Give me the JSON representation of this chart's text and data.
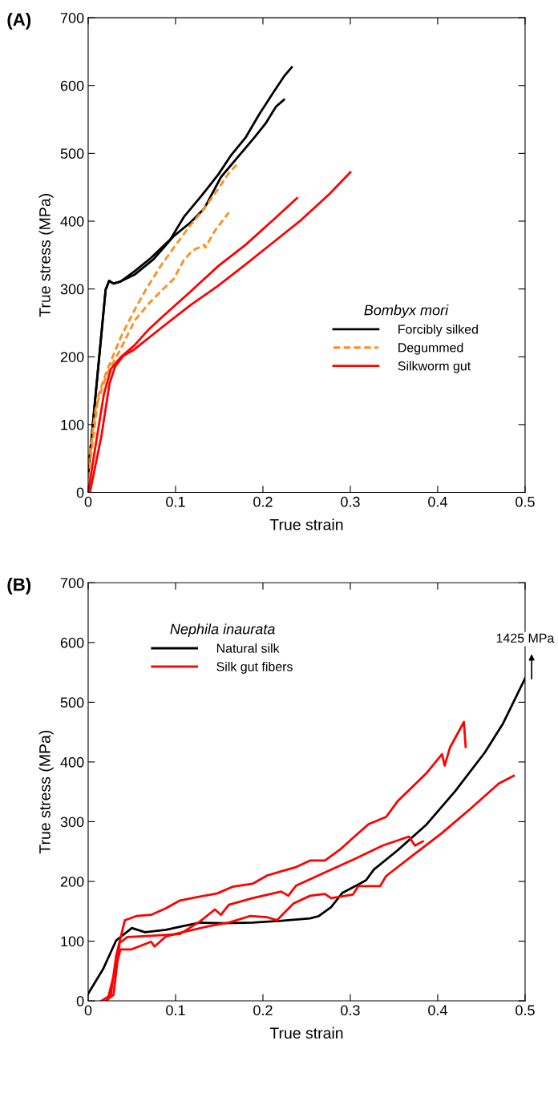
{
  "chart_data": [
    {
      "type": "line",
      "title": "(A)",
      "xlabel": "True strain",
      "ylabel": "True stress (MPa)",
      "legend_title": "Bombyx mori",
      "legend": "center right",
      "xlim": [
        0,
        0.5
      ],
      "ylim": [
        0,
        700
      ],
      "xticks": [
        0,
        0.1,
        0.2,
        0.3,
        0.4,
        0.5
      ],
      "yticks": [
        0,
        100,
        200,
        300,
        400,
        500,
        600,
        700
      ],
      "series": [
        {
          "name": "Forcibly silked",
          "color": "#000000",
          "x": [
            0,
            0.0086,
            0.02,
            0.024,
            0.029,
            0.037,
            0.053,
            0.072,
            0.094,
            0.11,
            0.13,
            0.149,
            0.164,
            0.18,
            0.196,
            0.212,
            0.225,
            0.233
          ],
          "values": [
            28,
            145,
            299,
            312,
            308,
            311,
            326,
            346,
            373,
            407,
            438,
            469,
            498,
            523,
            558,
            590,
            615,
            627
          ]
        },
        {
          "color": "#000000",
          "x": [
            0,
            0.0086,
            0.02,
            0.024,
            0.029,
            0.037,
            0.053,
            0.075,
            0.098,
            0.117,
            0.133,
            0.152,
            0.171,
            0.19,
            0.203,
            0.215,
            0.224
          ],
          "values": [
            28,
            145,
            299,
            312,
            308,
            311,
            321,
            344,
            378,
            398,
            419,
            465,
            494,
            523,
            544,
            569,
            579
          ]
        },
        {
          "name": "Degummed",
          "color": "#ff8c1a",
          "line_style": "dashed",
          "x": [
            0,
            0.012,
            0.021,
            0.037,
            0.053,
            0.066,
            0.082,
            0.098,
            0.117,
            0.133,
            0.149,
            0.161,
            0.172
          ],
          "values": [
            20,
            145,
            178,
            228,
            269,
            299,
            332,
            361,
            394,
            419,
            448,
            471,
            486
          ]
        },
        {
          "color": "#ff8c1a",
          "line_style": "dashed",
          "x": [
            0,
            0.0086,
            0.021,
            0.037,
            0.053,
            0.069,
            0.085,
            0.098,
            0.11,
            0.12,
            0.133,
            0.134,
            0.145,
            0.161
          ],
          "values": [
            41,
            124,
            174,
            211,
            253,
            278,
            299,
            315,
            344,
            357,
            365,
            361,
            386,
            413
          ]
        },
        {
          "name": "Silkworm gut",
          "color": "#ff0000",
          "x": [
            0,
            0.0086,
            0.018,
            0.026,
            0.037,
            0.053,
            0.069,
            0.085,
            0.117,
            0.149,
            0.18,
            0.212,
            0.239
          ],
          "values": [
            0,
            70,
            145,
            182,
            199,
            217,
            240,
            259,
            296,
            334,
            365,
            402,
            434
          ]
        },
        {
          "color": "#ff0000",
          "x": [
            0.002,
            0.015,
            0.0245,
            0.031,
            0.04,
            0.053,
            0.085,
            0.117,
            0.149,
            0.18,
            0.212,
            0.244,
            0.276,
            0.3
          ],
          "values": [
            0,
            82,
            161,
            186,
            201,
            211,
            244,
            276,
            305,
            336,
            369,
            402,
            440,
            472
          ]
        }
      ]
    },
    {
      "type": "line",
      "title": "(B)",
      "xlabel": "True strain",
      "ylabel": "True stress (MPa)",
      "legend_title": "Nephila inaurata",
      "legend": "upper left",
      "xlim": [
        0,
        0.5
      ],
      "ylim": [
        0,
        700
      ],
      "xticks": [
        0,
        0.1,
        0.2,
        0.3,
        0.4,
        0.5
      ],
      "yticks": [
        0,
        100,
        200,
        300,
        400,
        500,
        600,
        700
      ],
      "annotations": [
        "1425 MPa"
      ],
      "series": [
        {
          "name": "Natural silk",
          "color": "#000000",
          "x": [
            0,
            0.017,
            0.032,
            0.05,
            0.065,
            0.089,
            0.108,
            0.128,
            0.155,
            0.188,
            0.221,
            0.254,
            0.264,
            0.278,
            0.291,
            0.308,
            0.318,
            0.327,
            0.354,
            0.387,
            0.42,
            0.454,
            0.475,
            0.5
          ],
          "values": [
            12,
            53,
            101,
            122,
            115,
            119,
            125,
            131,
            130,
            131,
            134,
            138,
            142,
            157,
            181,
            194,
            202,
            220,
            252,
            295,
            351,
            416,
            465,
            540
          ]
        },
        {
          "name": "Silk gut fibers",
          "color": "#ff0000",
          "x": [
            0.015,
            0.026,
            0.032,
            0.042,
            0.055,
            0.072,
            0.089,
            0.105,
            0.122,
            0.148,
            0.165,
            0.188,
            0.205,
            0.221,
            0.238,
            0.254,
            0.271,
            0.288,
            0.304,
            0.321,
            0.341,
            0.354,
            0.387,
            0.405,
            0.408,
            0.414,
            0.43,
            0.432
          ],
          "values": [
            0,
            10,
            75,
            135,
            142,
            144,
            155,
            168,
            173,
            180,
            191,
            196,
            210,
            217,
            224,
            235,
            235,
            253,
            274,
            296,
            308,
            334,
            381,
            413,
            394,
            424,
            467,
            425
          ]
        },
        {
          "color": "#ff0000",
          "x": [
            0.02,
            0.029,
            0.036,
            0.045,
            0.072,
            0.105,
            0.128,
            0.145,
            0.152,
            0.161,
            0.188,
            0.221,
            0.229,
            0.238,
            0.271,
            0.304,
            0.337,
            0.367,
            0.374,
            0.383
          ],
          "values": [
            0,
            10,
            97,
            107,
            109,
            112,
            133,
            153,
            144,
            161,
            172,
            183,
            176,
            193,
            215,
            237,
            260,
            275,
            260,
            267
          ]
        },
        {
          "color": "#ff0000",
          "x": [
            0.022,
            0.031,
            0.037,
            0.049,
            0.072,
            0.076,
            0.089,
            0.105,
            0.138,
            0.161,
            0.185,
            0.205,
            0.216,
            0.235,
            0.254,
            0.271,
            0.278,
            0.303,
            0.309,
            0.334,
            0.341,
            0.371,
            0.404,
            0.437,
            0.47,
            0.487
          ],
          "values": [
            0,
            53,
            86,
            86,
            99,
            91,
            108,
            114,
            125,
            131,
            142,
            140,
            135,
            163,
            176,
            179,
            172,
            178,
            192,
            192,
            209,
            243,
            280,
            321,
            364,
            377
          ]
        }
      ]
    }
  ]
}
